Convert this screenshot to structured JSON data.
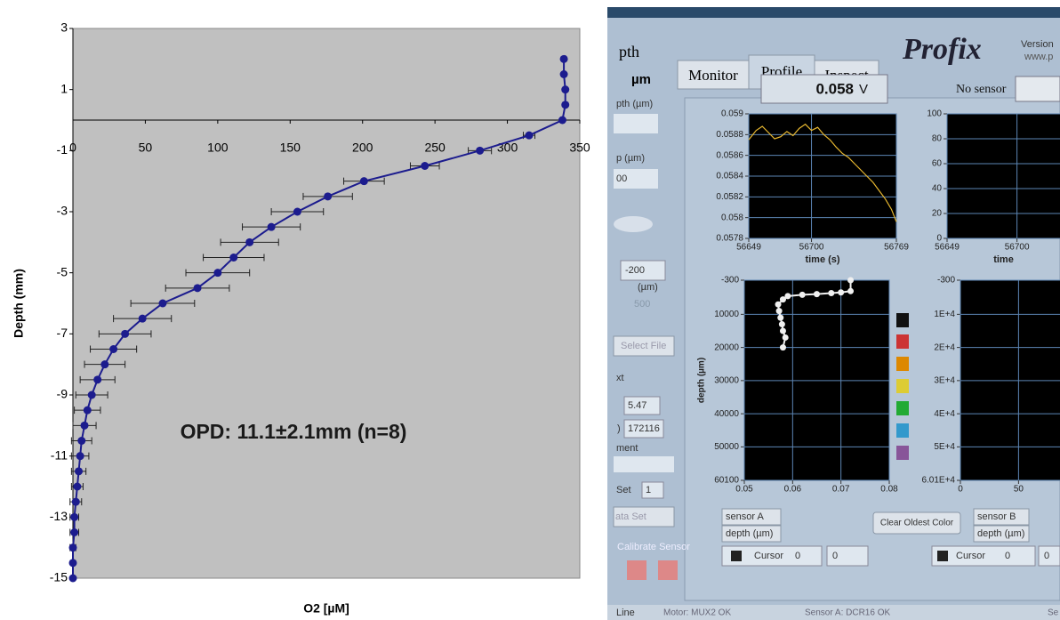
{
  "chart_data": [
    {
      "type": "scatter",
      "annotation": "OPD: 11.1±2.1mm (n=8)",
      "x_label": "O2 [µM]",
      "y_label": "Depth (mm)",
      "xlim": [
        0,
        350
      ],
      "ylim": [
        -15,
        3
      ],
      "xticks": [
        0,
        50,
        100,
        150,
        200,
        250,
        300,
        350
      ],
      "yticks": [
        -15,
        -13,
        -11,
        -9,
        -7,
        -5,
        -3,
        -1,
        1,
        3
      ],
      "grid": false,
      "background": "#c0c0c0",
      "series": [
        {
          "color": "#1c1c8e",
          "x": [
            339,
            339,
            340,
            340,
            338,
            315,
            281,
            243,
            201,
            176,
            155,
            137,
            122,
            111,
            100,
            86,
            62,
            48,
            36,
            28,
            22,
            17,
            13,
            10,
            8,
            6,
            5,
            4,
            3,
            2,
            1,
            1,
            0,
            0,
            0
          ],
          "y": [
            2,
            1.5,
            1,
            0.5,
            0,
            -0.5,
            -1,
            -1.5,
            -2,
            -2.5,
            -3,
            -3.5,
            -4,
            -4.5,
            -5,
            -5.5,
            -6,
            -6.5,
            -7,
            -7.5,
            -8,
            -8.5,
            -9,
            -9.5,
            -10,
            -10.5,
            -11,
            -11.5,
            -12,
            -12.5,
            -13,
            -13.5,
            -14,
            -14.5,
            -15
          ],
          "errors": [
            0,
            0,
            0,
            0,
            1,
            4,
            8,
            10,
            14,
            17,
            18,
            20,
            20,
            21,
            22,
            22,
            22,
            20,
            18,
            16,
            14,
            12,
            11,
            9,
            8,
            7,
            6,
            5,
            4,
            4,
            3,
            3,
            2,
            1,
            0
          ]
        }
      ]
    },
    {
      "type": "line",
      "x_label": "time (s)",
      "xlim": [
        56649,
        56769
      ],
      "ylim": [
        0.0578,
        0.059
      ],
      "xticks": [
        56649,
        56700,
        56769
      ],
      "yticks": [
        0.0578,
        0.058,
        0.0582,
        0.0584,
        0.0586,
        0.0588,
        0.059
      ],
      "grid": true,
      "background": "#000000",
      "series": [
        {
          "color": "#e8b830",
          "x": [
            56649,
            56655,
            56660,
            56665,
            56670,
            56675,
            56680,
            56685,
            56690,
            56695,
            56700,
            56705,
            56710,
            56715,
            56720,
            56725,
            56730,
            56735,
            56740,
            56745,
            56750,
            56755,
            56760,
            56765,
            56769
          ],
          "y": [
            0.05875,
            0.05884,
            0.05888,
            0.05882,
            0.05876,
            0.05878,
            0.05883,
            0.05879,
            0.05886,
            0.0589,
            0.05884,
            0.05887,
            0.0588,
            0.05875,
            0.05868,
            0.05862,
            0.05858,
            0.05852,
            0.05846,
            0.0584,
            0.05834,
            0.05826,
            0.05818,
            0.05808,
            0.05796
          ]
        }
      ]
    },
    {
      "type": "line",
      "x_label": "time",
      "xlim": [
        56649,
        56769
      ],
      "ylim": [
        0,
        100
      ],
      "xticks": [
        56649,
        56700
      ],
      "yticks": [
        0,
        20,
        40,
        60,
        80,
        100
      ],
      "grid": true,
      "background": "#000000",
      "series": []
    },
    {
      "type": "scatter",
      "y_label": "depth (µm)",
      "xlim": [
        0.05,
        0.08
      ],
      "ylim": [
        60100,
        -300
      ],
      "xticks": [
        0.05,
        0.06,
        0.07,
        0.08
      ],
      "yticks": [
        -300,
        10000,
        20000,
        30000,
        40000,
        50000,
        60100
      ],
      "grid": true,
      "background": "#000000",
      "series": [
        {
          "color": "#f0f0f0",
          "x": [
            0.072,
            0.072,
            0.07,
            0.068,
            0.065,
            0.062,
            0.059,
            0.058,
            0.057,
            0.0572,
            0.0575,
            0.0578,
            0.058,
            0.0585,
            0.058
          ],
          "y": [
            -300,
            3000,
            3400,
            3600,
            3900,
            4100,
            4500,
            5500,
            7000,
            9000,
            11000,
            13000,
            15000,
            17000,
            20000
          ]
        }
      ]
    },
    {
      "type": "scatter",
      "xlim": [
        0,
        130
      ],
      "ylim": [
        60100,
        -300
      ],
      "xticks": [
        0,
        50,
        100
      ],
      "yticks": [
        -300,
        {
          "value": 10000,
          "label": "1E+4"
        },
        {
          "value": 20000,
          "label": "2E+4"
        },
        {
          "value": 30000,
          "label": "3E+4"
        },
        {
          "value": 40000,
          "label": "4E+4"
        },
        {
          "value": 50000,
          "label": "5E+4"
        },
        {
          "value": 60100,
          "label": "6.01E+4"
        }
      ],
      "grid": true,
      "background": "#000000",
      "series": []
    }
  ],
  "ui": {
    "tabs": [
      "Monitor",
      "Profile",
      "Inspect"
    ],
    "app": "Profix",
    "version": "Version",
    "url": "www.p",
    "reading": "0.058",
    "unit": "V",
    "no_sensor": "No sensor",
    "side": [
      "pth",
      "µm",
      "pth (µm)",
      "p (µm)",
      "00",
      "-200",
      "(µm)",
      "500",
      "Select File",
      "xt",
      "5.47",
      ")",
      "172116",
      "ment",
      "Set",
      "1",
      "ata Set",
      "Calibrate Sensor"
    ],
    "controls_a": [
      "sensor A",
      "depth (µm)",
      "Cursor",
      "0",
      "0"
    ],
    "clear": "Clear Oldest Color",
    "controls_b": [
      "sensor B",
      "depth (µm)",
      "Cursor",
      "0",
      "0"
    ],
    "status": [
      "Line",
      "Motor: MUX2 OK",
      "Sensor A: DCR16 OK",
      "Se"
    ]
  }
}
